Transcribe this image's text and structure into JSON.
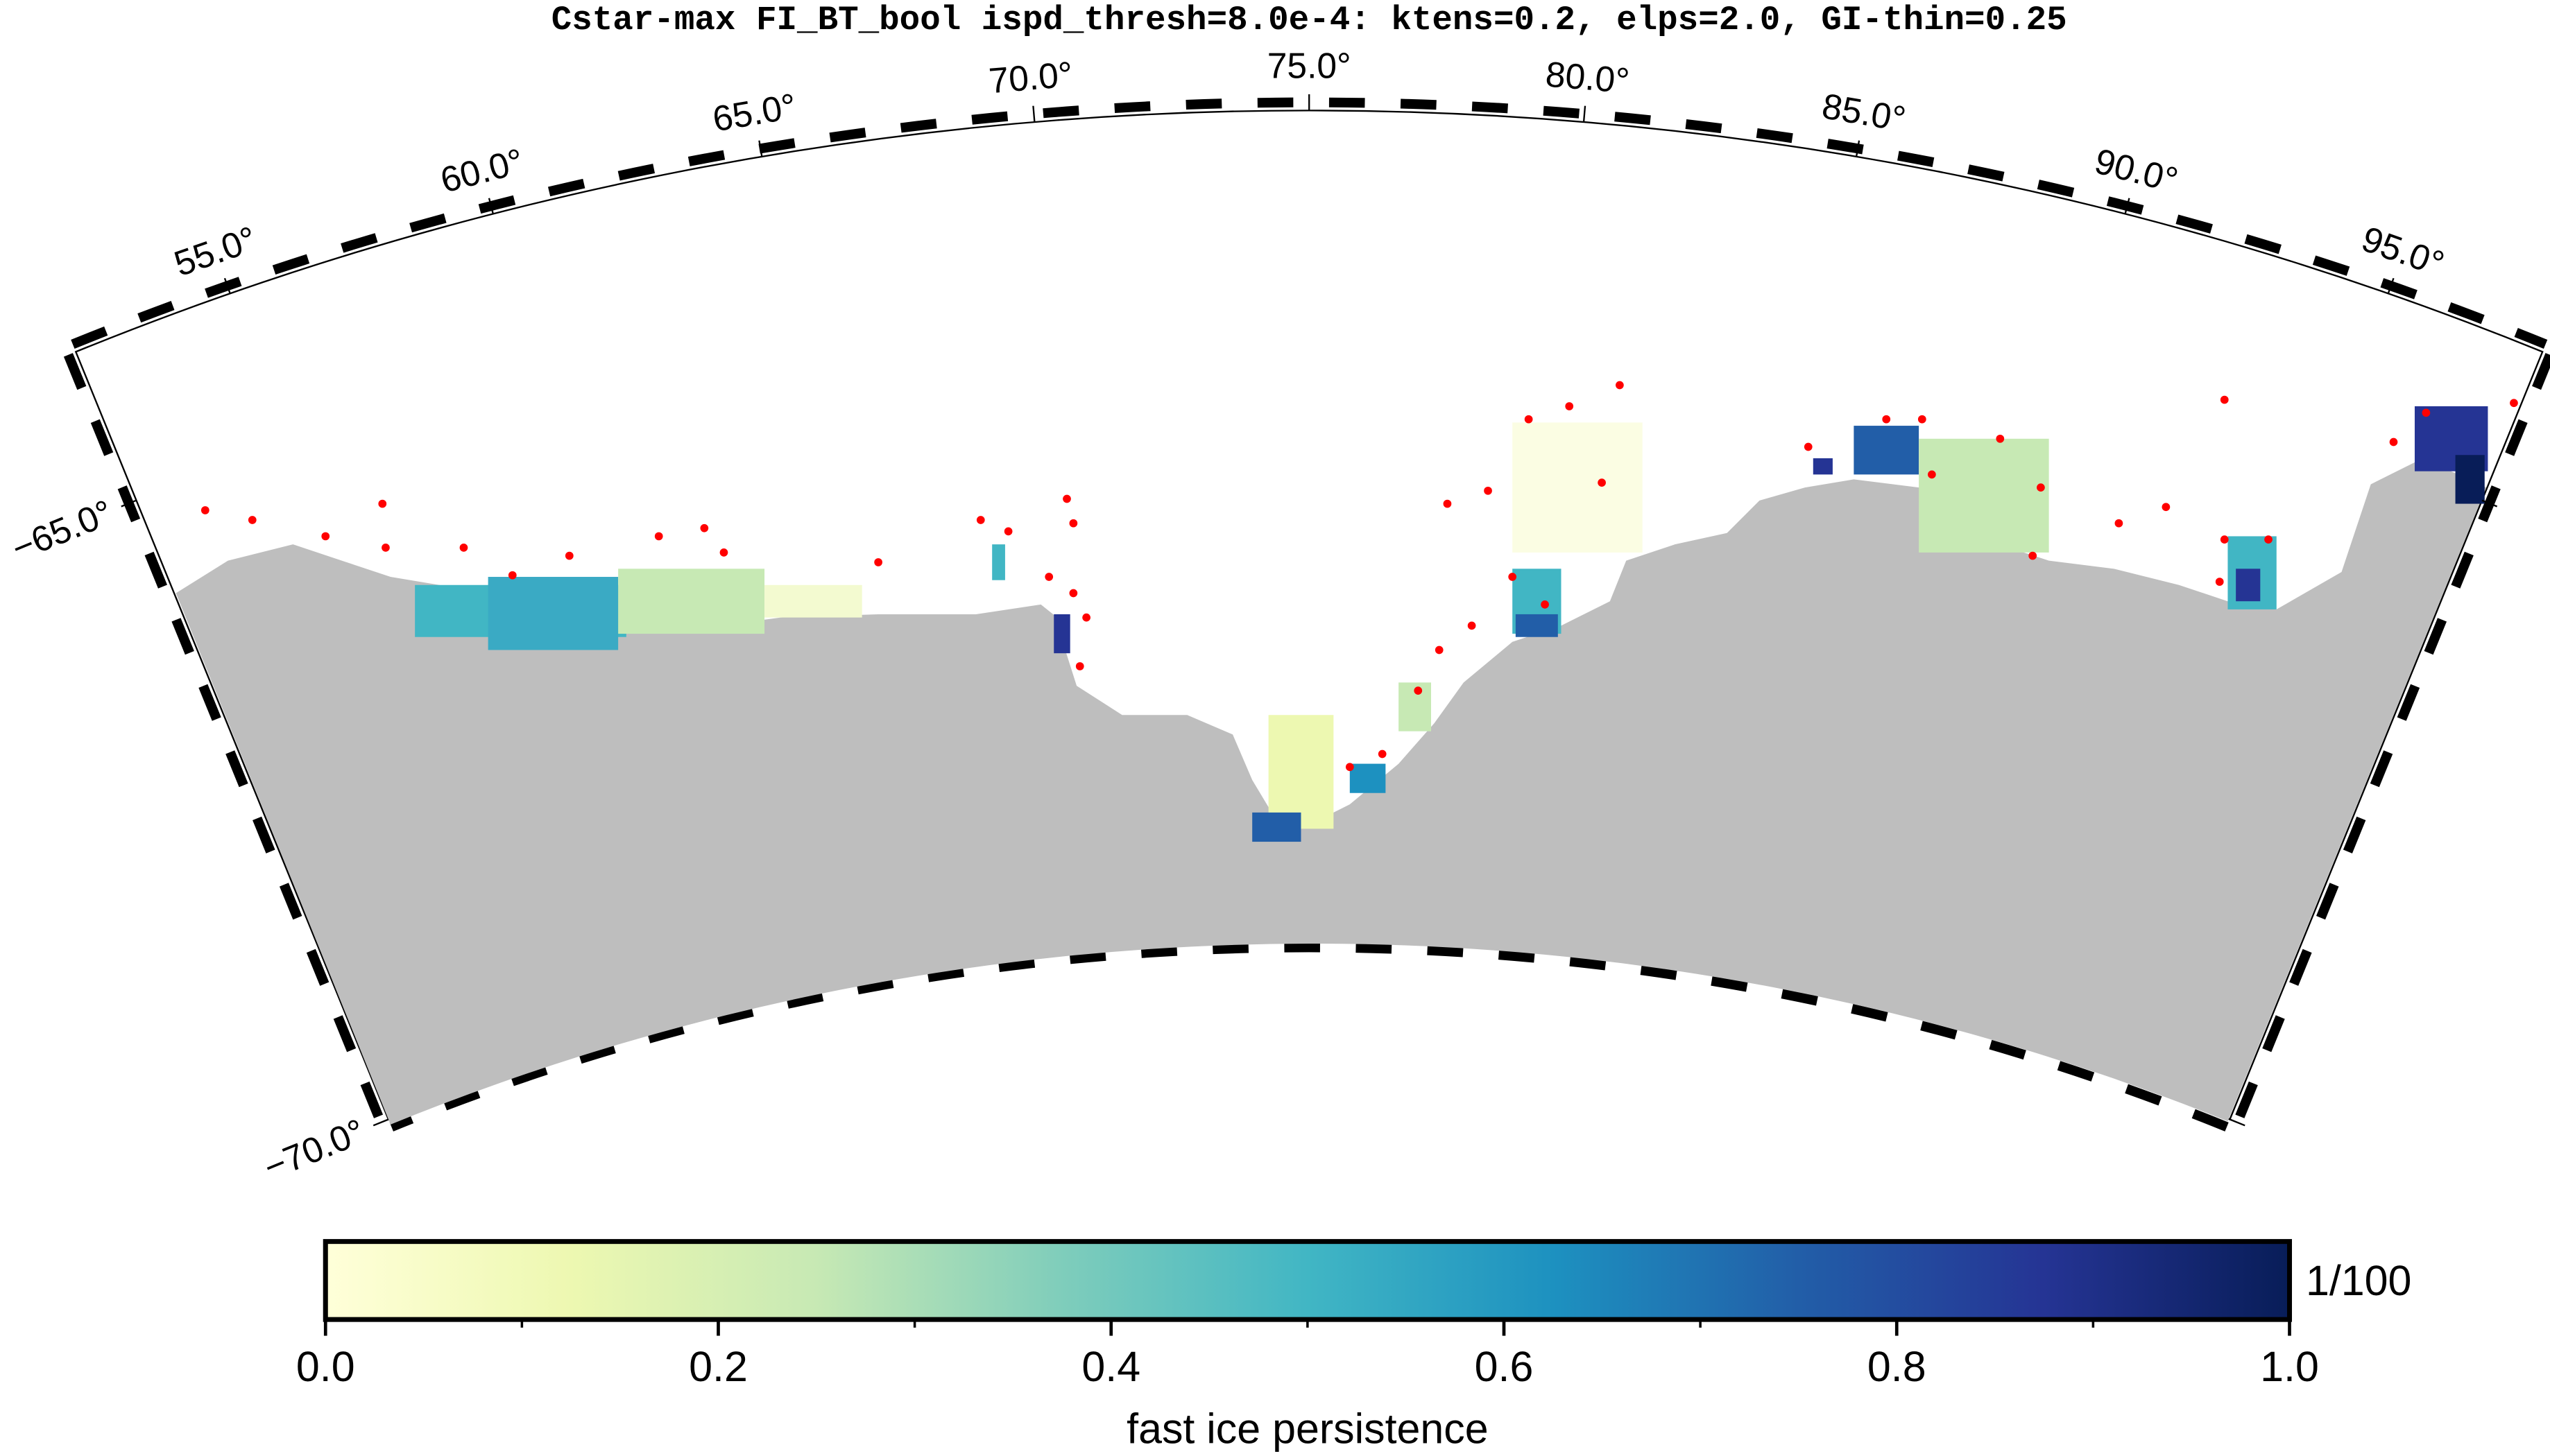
{
  "title": "Cstar-max FI_BT_bool ispd_thresh=8.0e-4: ktens=0.2, elps=2.0, GI-thin=0.25",
  "map": {
    "lonlim": [
      52,
      98
    ],
    "latlim": [
      -70,
      -63.8
    ],
    "lon_ticks": [
      {
        "value": 55,
        "label": "55.0°"
      },
      {
        "value": 60,
        "label": "60.0°"
      },
      {
        "value": 65,
        "label": "65.0°"
      },
      {
        "value": 70,
        "label": "70.0°"
      },
      {
        "value": 75,
        "label": "75.0°"
      },
      {
        "value": 80,
        "label": "80.0°"
      },
      {
        "value": 85,
        "label": "85.0°"
      },
      {
        "value": 90,
        "label": "90.0°"
      },
      {
        "value": 95,
        "label": "95.0°"
      }
    ],
    "lat_ticks": [
      {
        "value": -65,
        "label": "−65.0°"
      },
      {
        "value": -70,
        "label": "−70.0°"
      }
    ]
  },
  "colorbar": {
    "label": "fast ice persistence",
    "unit": "1/100",
    "lim": [
      0,
      1
    ],
    "ticks": [
      {
        "value": 0,
        "label": "0.0"
      },
      0.2,
      0.4,
      0.6,
      0.8,
      {
        "value": 1,
        "label": "1.0"
      }
    ],
    "minor_ticks": [
      0.1,
      0.3,
      0.5,
      0.7,
      0.9
    ],
    "colormap": [
      "#ffffd9",
      "#edf8b1",
      "#c7e9b4",
      "#7fcdbb",
      "#41b6c4",
      "#1d91c0",
      "#225ea8",
      "#253494",
      "#081d58"
    ]
  }
}
